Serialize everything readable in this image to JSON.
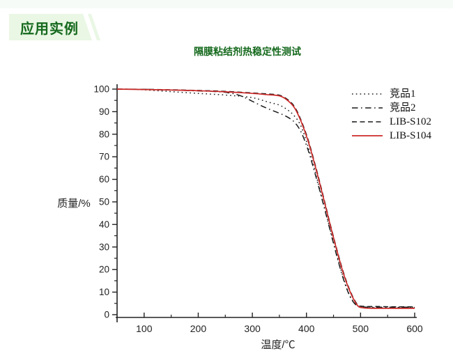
{
  "badge": {
    "label": "应用实例",
    "bg_color": "#e9f7e4",
    "text_color": "#15691d"
  },
  "chart_data": {
    "type": "line",
    "title": "隔膜粘结剂热稳定性测试",
    "title_color": "#15691d",
    "xlabel": "温度/℃",
    "ylabel": "质量/%",
    "xlim": [
      50,
      600
    ],
    "ylim": [
      0,
      100
    ],
    "x_ticks": [
      100,
      200,
      300,
      400,
      500,
      600
    ],
    "x_minor_ticks": [
      150,
      250,
      350,
      450,
      550
    ],
    "y_ticks": [
      0,
      10,
      20,
      30,
      40,
      50,
      60,
      70,
      80,
      90,
      100
    ],
    "y_minor_ticks": [
      5,
      15,
      25,
      35,
      45,
      55,
      65,
      75,
      85,
      95
    ],
    "grid": false,
    "legend_position": "top-right",
    "axis_color": "#222222",
    "series": [
      {
        "label": "竞品1",
        "style": "dotted",
        "color": "#1a1a1a",
        "points": [
          [
            50,
            100
          ],
          [
            80,
            99.9
          ],
          [
            100,
            99.7
          ],
          [
            130,
            99.2
          ],
          [
            160,
            98.7
          ],
          [
            200,
            98.1
          ],
          [
            230,
            97.7
          ],
          [
            260,
            97.2
          ],
          [
            280,
            96.8
          ],
          [
            300,
            96.2
          ],
          [
            315,
            95.3
          ],
          [
            330,
            94.2
          ],
          [
            350,
            92.9
          ],
          [
            365,
            90.8
          ],
          [
            378,
            88.0
          ],
          [
            390,
            83.5
          ],
          [
            403,
            74.5
          ],
          [
            416,
            63.5
          ],
          [
            429,
            51.5
          ],
          [
            442,
            39.5
          ],
          [
            455,
            27.5
          ],
          [
            468,
            16.5
          ],
          [
            481,
            8.0
          ],
          [
            494,
            4.0
          ],
          [
            506,
            3.3
          ],
          [
            530,
            3.2
          ],
          [
            560,
            3.2
          ],
          [
            600,
            3.2
          ]
        ]
      },
      {
        "label": "竞品2",
        "style": "dashdot",
        "color": "#1a1a1a",
        "points": [
          [
            50,
            100
          ],
          [
            100,
            99.9
          ],
          [
            150,
            99.6
          ],
          [
            200,
            99.2
          ],
          [
            240,
            98.8
          ],
          [
            260,
            98.2
          ],
          [
            275,
            97.3
          ],
          [
            290,
            95.8
          ],
          [
            300,
            94.6
          ],
          [
            315,
            92.8
          ],
          [
            330,
            91.2
          ],
          [
            350,
            89.3
          ],
          [
            365,
            87.6
          ],
          [
            378,
            85.3
          ],
          [
            390,
            81.0
          ],
          [
            403,
            73.0
          ],
          [
            416,
            62.5
          ],
          [
            429,
            51.0
          ],
          [
            442,
            39.0
          ],
          [
            455,
            27.0
          ],
          [
            468,
            16.0
          ],
          [
            481,
            7.8
          ],
          [
            494,
            3.8
          ],
          [
            506,
            3.4
          ],
          [
            530,
            3.3
          ],
          [
            560,
            3.3
          ],
          [
            600,
            3.3
          ]
        ]
      },
      {
        "label": "LIB-S102",
        "style": "dashed",
        "color": "#1a1a1a",
        "points": [
          [
            50,
            100
          ],
          [
            100,
            99.9
          ],
          [
            150,
            99.7
          ],
          [
            200,
            99.4
          ],
          [
            250,
            99.0
          ],
          [
            300,
            98.3
          ],
          [
            325,
            97.9
          ],
          [
            350,
            97.3
          ],
          [
            365,
            95.4
          ],
          [
            378,
            92.2
          ],
          [
            390,
            86.2
          ],
          [
            403,
            77.6
          ],
          [
            416,
            66.6
          ],
          [
            429,
            54.6
          ],
          [
            442,
            42.0
          ],
          [
            455,
            30.0
          ],
          [
            468,
            19.0
          ],
          [
            481,
            10.4
          ],
          [
            494,
            4.6
          ],
          [
            506,
            3.7
          ],
          [
            530,
            3.6
          ],
          [
            560,
            3.5
          ],
          [
            600,
            3.5
          ]
        ]
      },
      {
        "label": "LIB-S104",
        "style": "solid",
        "color": "#cc2928",
        "points": [
          [
            50,
            100
          ],
          [
            100,
            99.8
          ],
          [
            150,
            99.6
          ],
          [
            200,
            99.3
          ],
          [
            250,
            98.8
          ],
          [
            300,
            98.1
          ],
          [
            325,
            97.6
          ],
          [
            350,
            97.0
          ],
          [
            365,
            95.0
          ],
          [
            378,
            91.7
          ],
          [
            390,
            85.7
          ],
          [
            403,
            77.0
          ],
          [
            416,
            66.0
          ],
          [
            429,
            54.0
          ],
          [
            442,
            41.5
          ],
          [
            455,
            29.5
          ],
          [
            468,
            18.5
          ],
          [
            481,
            10.0
          ],
          [
            494,
            4.2
          ],
          [
            506,
            3.0
          ],
          [
            530,
            2.8
          ],
          [
            560,
            2.8
          ],
          [
            600,
            2.8
          ]
        ]
      }
    ]
  }
}
